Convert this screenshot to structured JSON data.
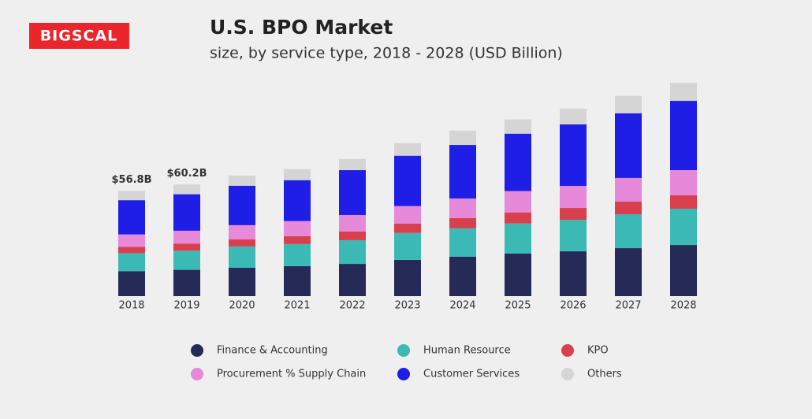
{
  "logo": "BIGSCAL",
  "chart_data": {
    "type": "stacked_bar",
    "title": "U.S. BPO Market",
    "subtitle": "size, by service type, 2018 - 2028 (USD Billion)",
    "categories": [
      "2018",
      "2019",
      "2020",
      "2021",
      "2022",
      "2023",
      "2024",
      "2025",
      "2026",
      "2027",
      "2028"
    ],
    "series": [
      {
        "name": "Finance & Accounting",
        "color": "#262a56",
        "values": [
          13.5,
          14.2,
          15.3,
          16.2,
          17.4,
          19.6,
          21.3,
          23.0,
          24.2,
          25.9,
          27.6
        ]
      },
      {
        "name": "Human Resource",
        "color": "#3bbab5",
        "values": [
          9.7,
          10.3,
          11.5,
          11.9,
          12.8,
          14.5,
          15.3,
          16.2,
          17.0,
          18.3,
          19.6
        ]
      },
      {
        "name": "KPO",
        "color": "#d8404e",
        "values": [
          3.4,
          3.9,
          3.8,
          4.3,
          4.7,
          5.1,
          5.5,
          6.0,
          6.4,
          6.8,
          7.2
        ]
      },
      {
        "name": "Procurement % Supply Chain",
        "color": "#e589d8",
        "values": [
          6.7,
          6.9,
          7.7,
          8.1,
          8.9,
          9.4,
          10.6,
          11.5,
          11.9,
          12.8,
          13.6
        ]
      },
      {
        "name": "Customer Services",
        "color": "#1e1ee6",
        "values": [
          18.5,
          19.7,
          21.3,
          22.1,
          24.2,
          27.2,
          28.9,
          31.0,
          33.2,
          34.9,
          37.4
        ]
      },
      {
        "name": "Others",
        "color": "#d5d5d5",
        "values": [
          5.0,
          5.2,
          5.5,
          6.0,
          6.0,
          6.8,
          7.7,
          7.7,
          8.5,
          9.4,
          9.8
        ]
      }
    ],
    "total_labels": [
      {
        "value": 56.8,
        "label": "$56.8B"
      },
      {
        "value": 60.2,
        "label": "$60.2B"
      },
      null,
      null,
      null,
      null,
      null,
      null,
      null,
      null,
      null
    ]
  }
}
